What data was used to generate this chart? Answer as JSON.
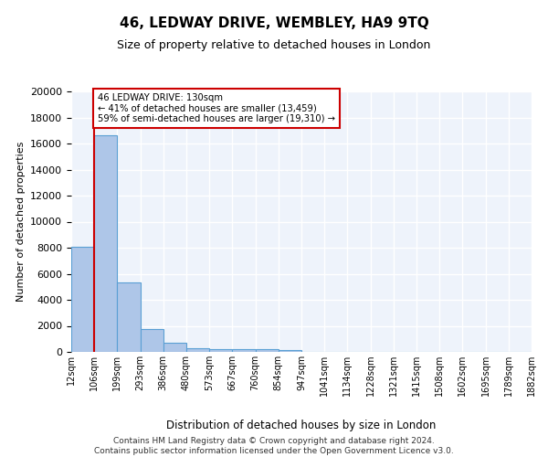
{
  "title": "46, LEDWAY DRIVE, WEMBLEY, HA9 9TQ",
  "subtitle": "Size of property relative to detached houses in London",
  "xlabel": "Distribution of detached houses by size in London",
  "ylabel": "Number of detached properties",
  "bar_color": "#aec6e8",
  "bar_edge_color": "#5a9fd4",
  "background_color": "#eef3fb",
  "grid_color": "#ffffff",
  "annotation_box_color": "#ffffff",
  "annotation_border_color": "#cc0000",
  "red_line_color": "#cc0000",
  "bin_labels": [
    "12sqm",
    "106sqm",
    "199sqm",
    "293sqm",
    "386sqm",
    "480sqm",
    "573sqm",
    "667sqm",
    "760sqm",
    "854sqm",
    "947sqm",
    "1041sqm",
    "1134sqm",
    "1228sqm",
    "1321sqm",
    "1415sqm",
    "1508sqm",
    "1602sqm",
    "1695sqm",
    "1789sqm",
    "1882sqm"
  ],
  "bar_heights": [
    8100,
    16600,
    5300,
    1750,
    700,
    300,
    230,
    200,
    190,
    150,
    0,
    0,
    0,
    0,
    0,
    0,
    0,
    0,
    0,
    0
  ],
  "pct_smaller": 41,
  "num_smaller": 13459,
  "pct_larger": 59,
  "num_larger": 19310,
  "ylim": [
    0,
    20000
  ],
  "yticks": [
    0,
    2000,
    4000,
    6000,
    8000,
    10000,
    12000,
    14000,
    16000,
    18000,
    20000
  ],
  "footer_line1": "Contains HM Land Registry data © Crown copyright and database right 2024.",
  "footer_line2": "Contains public sector information licensed under the Open Government Licence v3.0."
}
